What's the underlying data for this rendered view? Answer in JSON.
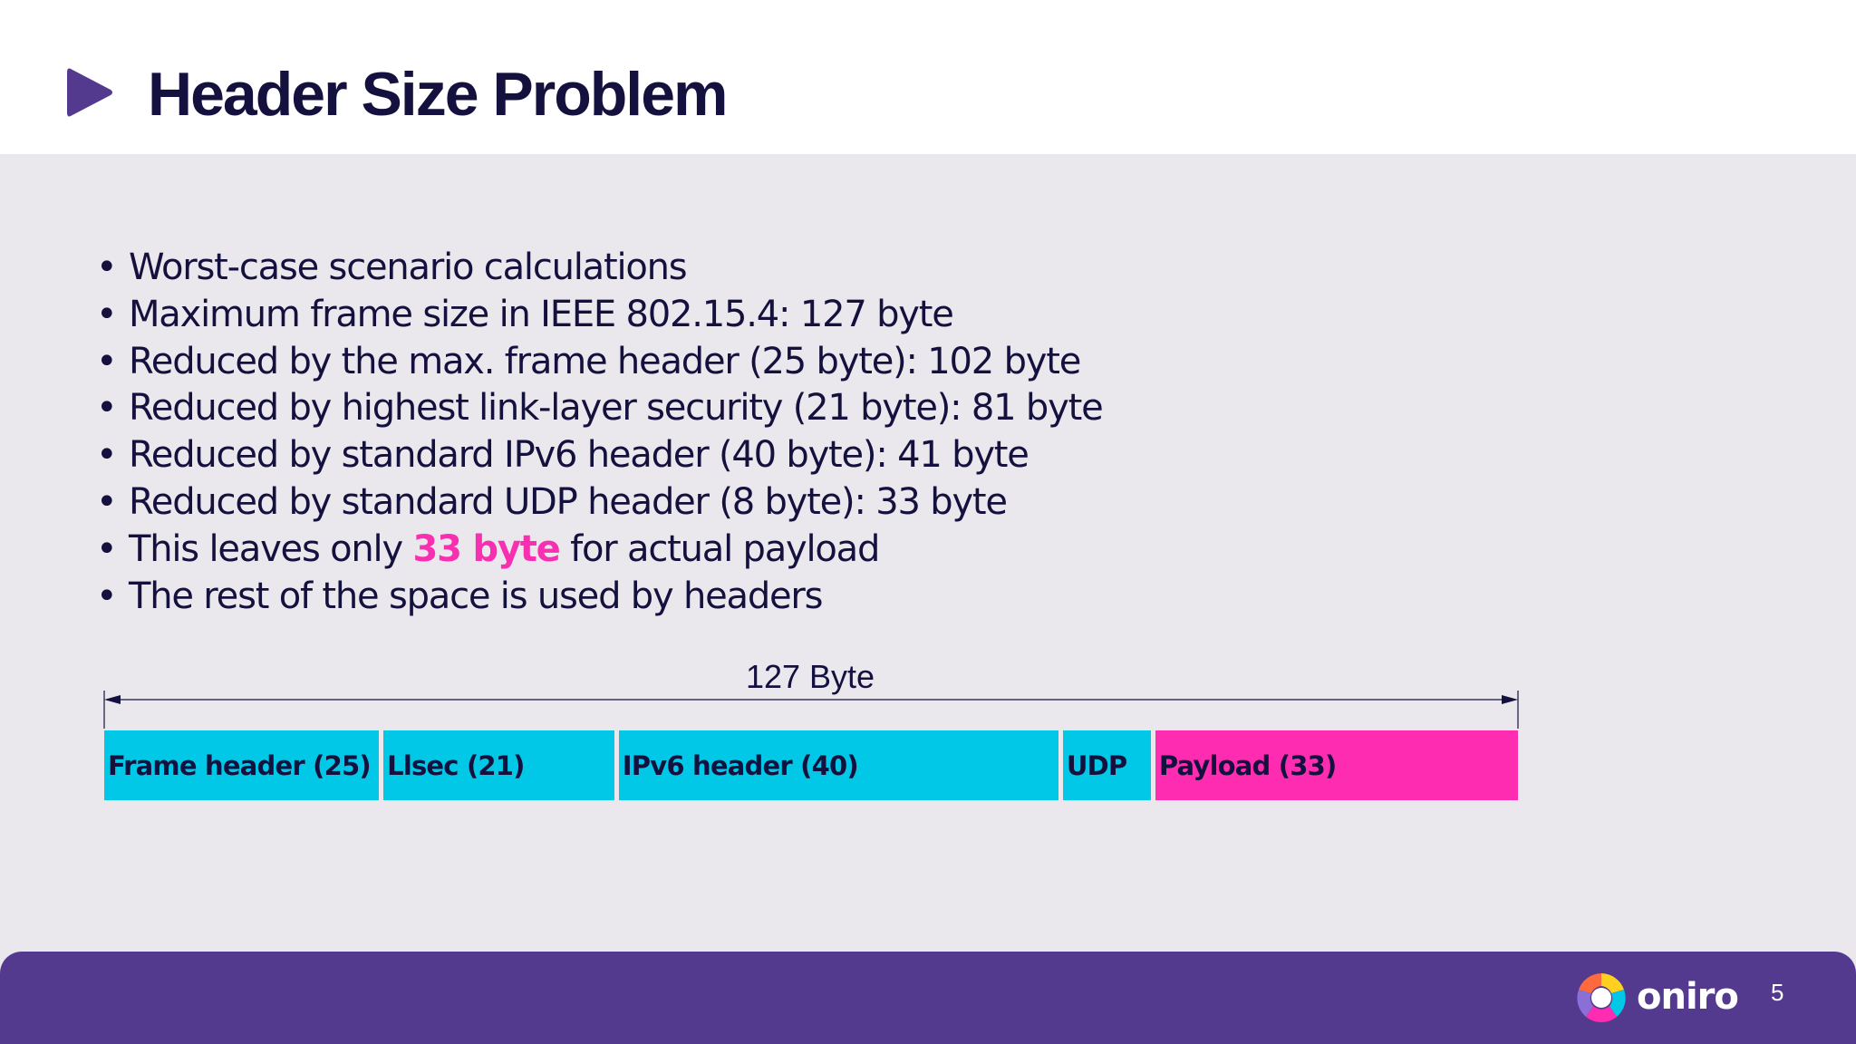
{
  "slide": {
    "title": "Header Size Problem",
    "page_number": "5"
  },
  "bullets": [
    {
      "text": "Worst-case scenario calculations"
    },
    {
      "text": "Maximum frame size in IEEE 802.15.4: 127 byte"
    },
    {
      "text": "Reduced by the max. frame header (25 byte): 102 byte"
    },
    {
      "text": "Reduced by highest link-layer security (21 byte): 81 byte"
    },
    {
      "text": "Reduced by standard IPv6 header (40 byte): 41 byte"
    },
    {
      "text": "Reduced by standard UDP header (8 byte): 33 byte"
    },
    {
      "pre": "This leaves only ",
      "highlight": "33 byte",
      "post": " for actual payload"
    },
    {
      "text": "The rest of the space is used by headers"
    }
  ],
  "frame_diagram": {
    "total_label": "127 Byte",
    "total_bytes": 127,
    "segments": [
      {
        "label": "Frame header (25)",
        "bytes": 25,
        "color": "#00c8e6"
      },
      {
        "label": "Llsec (21)",
        "bytes": 21,
        "color": "#00c8e6"
      },
      {
        "label": "IPv6 header (40)",
        "bytes": 40,
        "color": "#00c8e6"
      },
      {
        "label": "UDP",
        "bytes": 8,
        "color": "#00c8e6"
      },
      {
        "label": "Payload (33)",
        "bytes": 33,
        "color": "#fe2cb1"
      }
    ]
  },
  "footer": {
    "brand": "oniro"
  },
  "colors": {
    "title": "#15113e",
    "accent_purple": "#533a8e",
    "highlight_pink": "#f72fb0",
    "header_cyan": "#00c8e6",
    "payload_pink": "#fe2cb1"
  }
}
